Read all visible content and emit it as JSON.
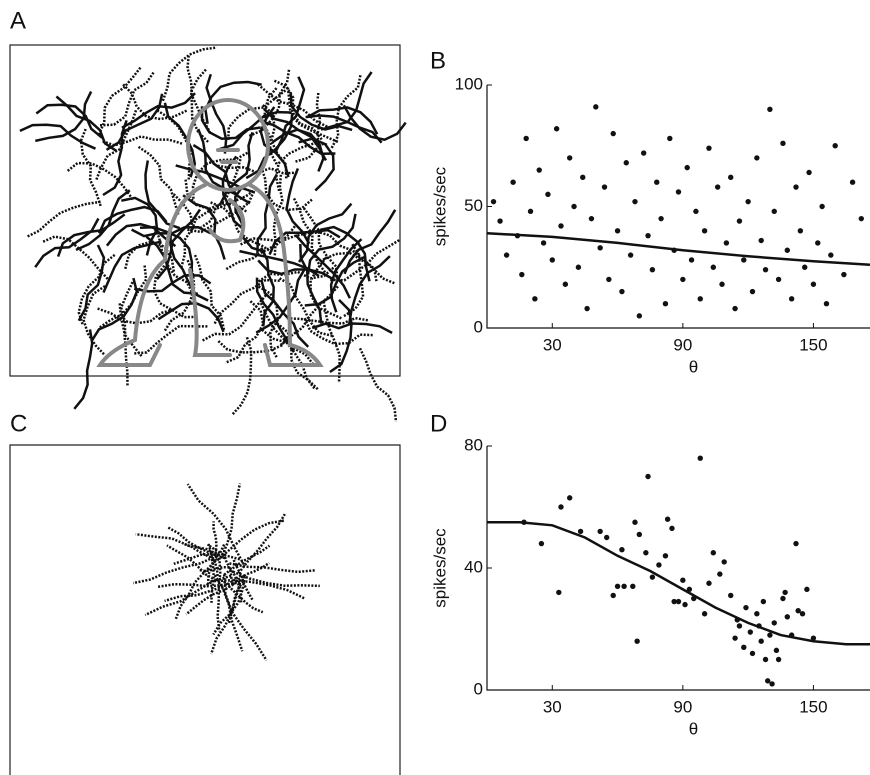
{
  "panel_labels": [
    "A",
    "B",
    "C",
    "D"
  ],
  "chart_data": [
    {
      "type": "scatter",
      "ylabel": "spikes/sec",
      "xlabel": "θ",
      "xlim": [
        0,
        176
      ],
      "ylim": [
        0,
        100
      ],
      "xticks": [
        30,
        90,
        150
      ],
      "yticks": [
        0,
        50,
        100
      ],
      "series": [
        {
          "type": "scatter",
          "color": "#111",
          "x": [
            3,
            6,
            9,
            12,
            14,
            16,
            18,
            20,
            22,
            24,
            26,
            28,
            30,
            32,
            34,
            36,
            38,
            40,
            42,
            44,
            46,
            48,
            50,
            52,
            54,
            56,
            58,
            60,
            62,
            64,
            66,
            68,
            70,
            72,
            74,
            76,
            78,
            80,
            82,
            84,
            86,
            88,
            90,
            92,
            94,
            96,
            98,
            100,
            102,
            104,
            106,
            108,
            110,
            112,
            114,
            116,
            118,
            120,
            122,
            124,
            126,
            128,
            130,
            132,
            134,
            136,
            138,
            140,
            142,
            144,
            146,
            148,
            150,
            152,
            154,
            156,
            158,
            160,
            164,
            168,
            172
          ],
          "values": [
            52,
            44,
            30,
            60,
            38,
            22,
            78,
            48,
            12,
            65,
            35,
            55,
            28,
            82,
            42,
            18,
            70,
            50,
            25,
            62,
            8,
            45,
            91,
            33,
            58,
            20,
            80,
            40,
            15,
            68,
            30,
            52,
            5,
            72,
            38,
            24,
            60,
            45,
            10,
            78,
            32,
            56,
            20,
            66,
            28,
            48,
            12,
            40,
            74,
            25,
            58,
            18,
            35,
            62,
            8,
            44,
            28,
            52,
            15,
            70,
            36,
            24,
            90,
            48,
            20,
            76,
            32,
            12,
            58,
            40,
            25,
            64,
            18,
            35,
            50,
            10,
            30,
            75,
            22,
            60,
            45
          ]
        },
        {
          "type": "line",
          "color": "#111",
          "x": [
            0,
            30,
            60,
            90,
            120,
            150,
            176
          ],
          "values": [
            39,
            37.5,
            35,
            32,
            29.5,
            27.5,
            26
          ]
        }
      ]
    },
    {
      "type": "scatter",
      "ylabel": "spikes/sec",
      "xlabel": "θ",
      "xlim": [
        0,
        176
      ],
      "ylim": [
        0,
        80
      ],
      "xticks": [
        30,
        90,
        150
      ],
      "yticks": [
        0,
        40,
        80
      ],
      "series": [
        {
          "type": "scatter",
          "color": "#111",
          "x": [
            17,
            25,
            33,
            34,
            38,
            43,
            52,
            55,
            58,
            60,
            62,
            63,
            67,
            68,
            69,
            70,
            73,
            74,
            76,
            79,
            82,
            83,
            85,
            86,
            88,
            90,
            91,
            93,
            95,
            98,
            100,
            102,
            104,
            107,
            109,
            112,
            114,
            115,
            116,
            118,
            119,
            121,
            122,
            124,
            125,
            126,
            127,
            128,
            129,
            130,
            131,
            132,
            133,
            134,
            136,
            137,
            138,
            140,
            142,
            143,
            145,
            147,
            150
          ],
          "values": [
            55,
            48,
            32,
            60,
            63,
            52,
            52,
            50,
            31,
            34,
            46,
            34,
            34,
            55,
            16,
            51,
            45,
            70,
            37,
            41,
            44,
            56,
            53,
            29,
            29,
            36,
            28,
            33,
            30,
            76,
            25,
            35,
            45,
            38,
            42,
            31,
            17,
            23,
            21,
            14,
            27,
            19,
            12,
            25,
            21,
            16,
            29,
            10,
            3,
            18,
            2,
            22,
            13,
            10,
            30,
            32,
            24,
            18,
            48,
            26,
            25,
            33,
            17
          ]
        },
        {
          "type": "line",
          "color": "#111",
          "x": [
            0,
            15,
            30,
            45,
            60,
            75,
            90,
            105,
            120,
            135,
            150,
            165,
            176
          ],
          "values": [
            55,
            55,
            54,
            50,
            44,
            39,
            33,
            27,
            22,
            18,
            16,
            15,
            15
          ]
        }
      ]
    }
  ]
}
